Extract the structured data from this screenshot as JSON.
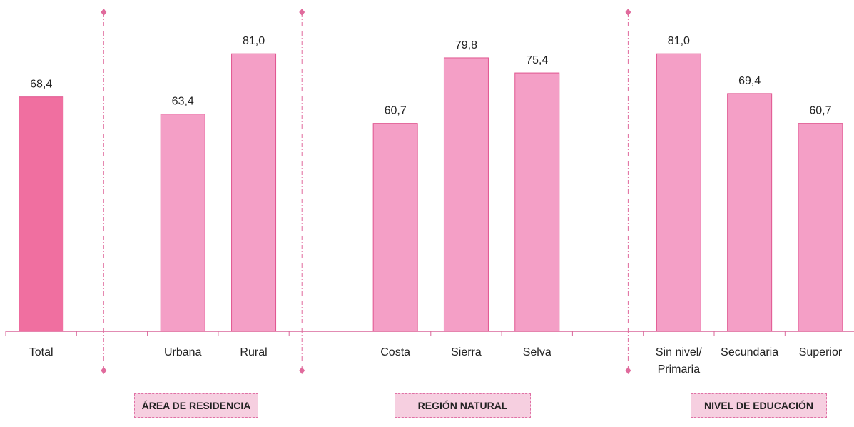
{
  "chart_data": {
    "type": "bar",
    "categories": [
      "Total",
      "",
      "Urbana",
      "Rural",
      "",
      "Costa",
      "Sierra",
      "Selva",
      "",
      "Sin nivel/ Primaria",
      "Secundaria",
      "Superior"
    ],
    "values": [
      68.4,
      null,
      63.4,
      81.0,
      null,
      60.7,
      79.8,
      75.4,
      null,
      81.0,
      69.4,
      60.7
    ],
    "value_labels": [
      "68,4",
      "",
      "63,4",
      "81,0",
      "",
      "60,7",
      "79,8",
      "75,4",
      "",
      "81,0",
      "69,4",
      "60,7"
    ],
    "groups": [
      "ÁREA DE RESIDENCIA",
      "REGIÓN NATURAL",
      "NIVEL DE EDUCACIÓN"
    ],
    "title": "",
    "xlabel": "",
    "ylabel": "",
    "ylim": [
      0,
      90
    ],
    "grid": false,
    "colors": {
      "total": "#f06fa0",
      "bars": "#f49fc6",
      "bar_edge": "#e0558f",
      "separator": "#e06a9c",
      "axis": "#d9679a"
    }
  }
}
